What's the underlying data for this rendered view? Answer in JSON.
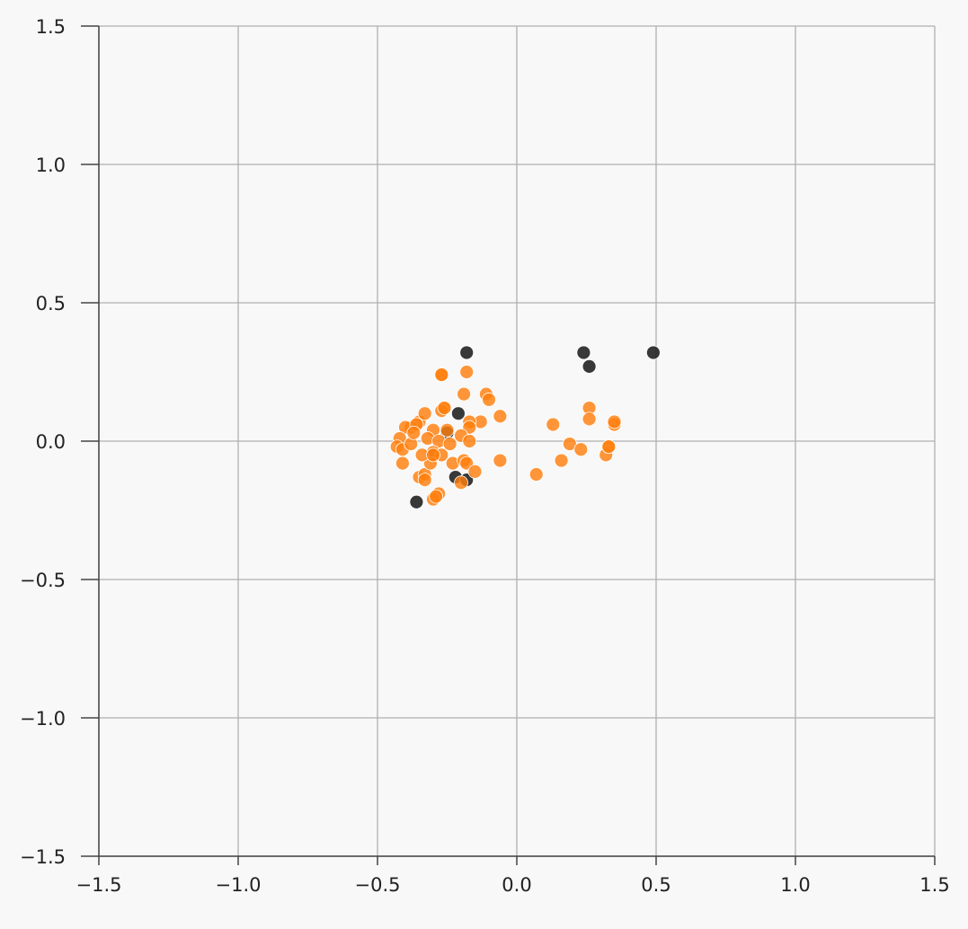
{
  "chart_data": {
    "type": "scatter",
    "title": "",
    "xlabel": "",
    "ylabel": "",
    "xlim": [
      -1.5,
      1.5
    ],
    "ylim": [
      -1.5,
      1.5
    ],
    "grid": true,
    "xticks": [
      "−1.5",
      "−1.0",
      "−0.5",
      "0.0",
      "0.5",
      "1.0",
      "1.5"
    ],
    "yticks": [
      "1.5",
      "1.0",
      "0.5",
      "0.0",
      "−0.5",
      "−1.0",
      "−1.5"
    ],
    "xtick_values": [
      -1.5,
      -1.0,
      -0.5,
      0.0,
      0.5,
      1.0,
      1.5
    ],
    "ytick_values": [
      1.5,
      1.0,
      0.5,
      0.0,
      -0.5,
      -1.0,
      -1.5
    ],
    "colors": {
      "series_dark": "#222222",
      "series_orange": "#ff7f0e",
      "grid": "#b0b0b0",
      "axis": "#444444",
      "background": "#f8f8f8"
    },
    "series": [
      {
        "color": "#222222",
        "points": [
          [
            -0.18,
            0.32
          ],
          [
            0.24,
            0.32
          ],
          [
            0.49,
            0.32
          ],
          [
            0.26,
            0.27
          ],
          [
            -0.21,
            0.1
          ],
          [
            -0.22,
            -0.13
          ],
          [
            -0.18,
            -0.14
          ],
          [
            -0.36,
            -0.22
          ],
          [
            -0.3,
            -0.05
          ],
          [
            -0.25,
            0.03
          ]
        ]
      },
      {
        "color": "#ff7f0e",
        "points": [
          [
            -0.27,
            0.24
          ],
          [
            -0.18,
            0.25
          ],
          [
            -0.27,
            0.24
          ],
          [
            -0.19,
            0.17
          ],
          [
            -0.11,
            0.17
          ],
          [
            -0.1,
            0.15
          ],
          [
            -0.26,
            0.12
          ],
          [
            -0.27,
            0.11
          ],
          [
            -0.06,
            0.09
          ],
          [
            -0.13,
            0.07
          ],
          [
            -0.17,
            0.07
          ],
          [
            -0.17,
            0.05
          ],
          [
            -0.2,
            0.02
          ],
          [
            -0.17,
            0.0
          ],
          [
            -0.25,
            0.04
          ],
          [
            -0.3,
            0.04
          ],
          [
            -0.35,
            0.07
          ],
          [
            -0.38,
            0.05
          ],
          [
            -0.4,
            0.05
          ],
          [
            -0.42,
            0.01
          ],
          [
            -0.43,
            -0.02
          ],
          [
            -0.41,
            -0.03
          ],
          [
            -0.38,
            -0.01
          ],
          [
            -0.36,
            0.06
          ],
          [
            -0.33,
            0.1
          ],
          [
            -0.32,
            0.01
          ],
          [
            -0.28,
            0.0
          ],
          [
            -0.24,
            -0.01
          ],
          [
            -0.3,
            -0.04
          ],
          [
            -0.27,
            -0.05
          ],
          [
            -0.23,
            -0.08
          ],
          [
            -0.19,
            -0.07
          ],
          [
            -0.18,
            -0.08
          ],
          [
            -0.15,
            -0.11
          ],
          [
            -0.06,
            -0.07
          ],
          [
            -0.41,
            -0.08
          ],
          [
            -0.35,
            -0.13
          ],
          [
            -0.33,
            -0.12
          ],
          [
            -0.33,
            -0.14
          ],
          [
            -0.2,
            -0.15
          ],
          [
            -0.28,
            -0.19
          ],
          [
            -0.3,
            -0.21
          ],
          [
            -0.29,
            -0.2
          ],
          [
            -0.31,
            -0.08
          ],
          [
            -0.34,
            -0.05
          ],
          [
            -0.37,
            0.03
          ],
          [
            -0.26,
            0.12
          ],
          [
            0.07,
            -0.12
          ],
          [
            0.13,
            0.06
          ],
          [
            0.16,
            -0.07
          ],
          [
            0.19,
            -0.01
          ],
          [
            0.23,
            -0.03
          ],
          [
            0.26,
            0.12
          ],
          [
            0.26,
            0.08
          ],
          [
            0.32,
            -0.05
          ],
          [
            0.33,
            -0.02
          ],
          [
            0.33,
            -0.02
          ],
          [
            0.35,
            0.06
          ],
          [
            0.35,
            0.07
          ],
          [
            -0.3,
            -0.05
          ]
        ]
      }
    ]
  }
}
